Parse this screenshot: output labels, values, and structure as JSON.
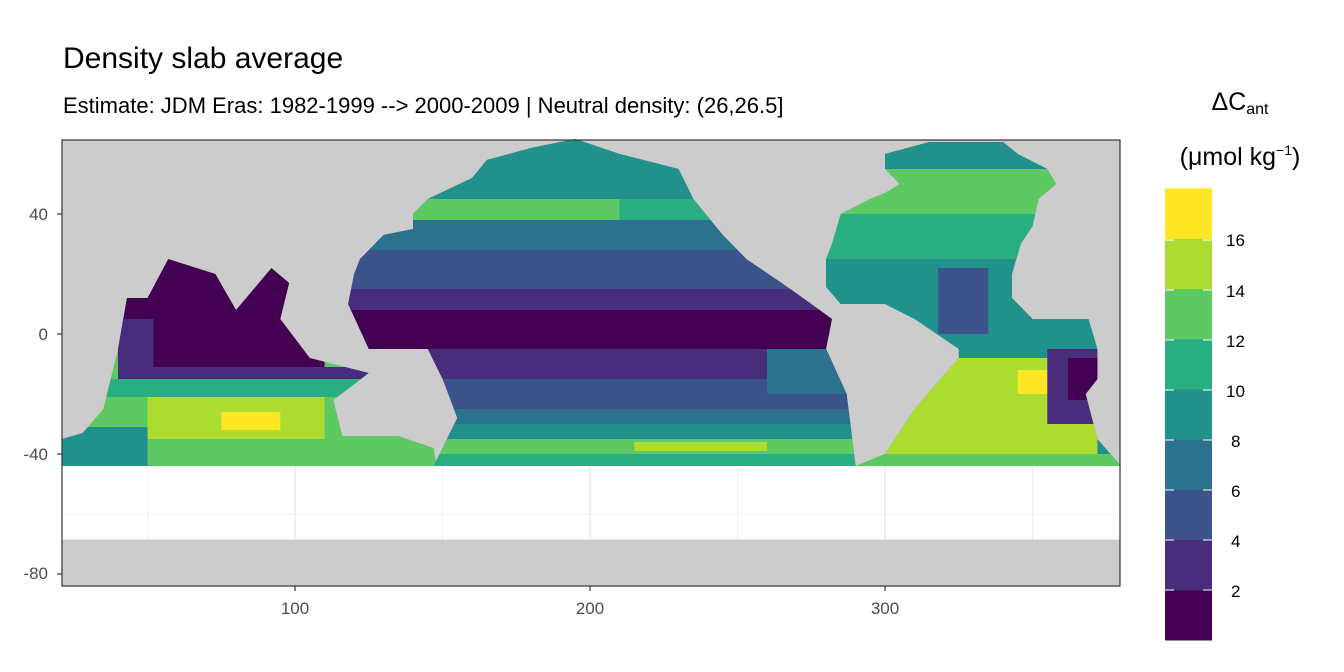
{
  "title": "Density slab average",
  "subtitle": "Estimate: JDM Eras: 1982-1999 --> 2000-2009 | Neutral density: (26,26.5]",
  "legend": {
    "title_main": "ΔC",
    "title_sub": "ant",
    "units_pre": "(μmol kg",
    "units_sup": "−1",
    "units_post": ")",
    "breaks": [
      "2",
      "4",
      "6",
      "8",
      "10",
      "12",
      "14",
      "16"
    ],
    "colors": [
      "#440154",
      "#472d7b",
      "#3b528b",
      "#2c728e",
      "#21918c",
      "#28ae80",
      "#5ec962",
      "#addc30",
      "#fde725"
    ]
  },
  "chart_data": {
    "type": "heatmap",
    "title": "Density slab average",
    "subtitle": "Estimate: JDM Eras: 1982-1999 --> 2000-2009 | Neutral density: (26,26.5]",
    "xlabel": "",
    "ylabel": "",
    "x_ticks": [
      "100",
      "200",
      "300"
    ],
    "y_ticks": [
      "40",
      "0",
      "-40",
      "-80"
    ],
    "xlim": [
      21,
      380
    ],
    "ylim": [
      -84,
      65
    ],
    "grid": true,
    "legend_position": "right",
    "land_color": "#cccccc",
    "legend_breaks": [
      2,
      4,
      6,
      8,
      10,
      12,
      14,
      16
    ]
  }
}
